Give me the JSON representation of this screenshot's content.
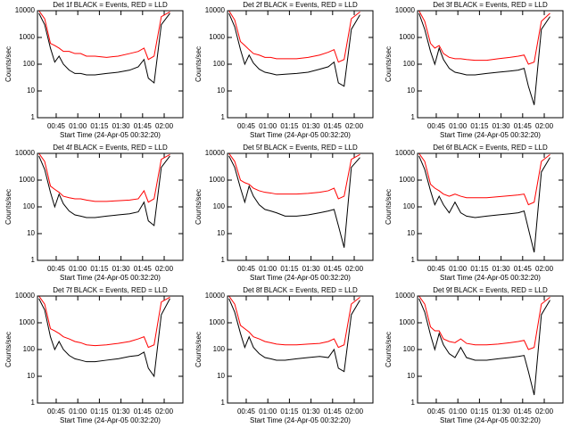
{
  "chart_data": [
    {
      "type": "line",
      "title": "Det 1f BLACK = Events, RED = LLD",
      "xlabel": "Start Time (24-Apr-05 00:32:20)",
      "ylabel": "Counts/sec",
      "log_scale": true,
      "x": [
        33,
        37,
        41,
        44,
        47,
        50,
        54,
        58,
        62,
        66,
        72,
        80,
        88,
        96,
        102,
        106,
        109,
        113,
        118,
        124
      ],
      "series": [
        {
          "name": "Events",
          "color": "#000000",
          "values": [
            8000,
            3000,
            400,
            120,
            200,
            100,
            60,
            45,
            45,
            40,
            40,
            45,
            50,
            60,
            80,
            150,
            30,
            20,
            3000,
            8000
          ]
        },
        {
          "name": "LLD",
          "color": "#ff0000",
          "values": [
            10000,
            5000,
            600,
            500,
            400,
            300,
            300,
            250,
            250,
            200,
            200,
            180,
            200,
            250,
            300,
            400,
            150,
            200,
            6000,
            9000
          ]
        }
      ],
      "xlim": [
        32,
        133
      ],
      "ylim": [
        1,
        10000
      ],
      "yticks": [
        1,
        10,
        100,
        1000,
        10000
      ],
      "xticks": [
        {
          "value": 45,
          "label": "00:45"
        },
        {
          "value": 60,
          "label": "01:00"
        },
        {
          "value": 75,
          "label": "01:15"
        },
        {
          "value": 90,
          "label": "01:30"
        },
        {
          "value": 105,
          "label": "01:45"
        },
        {
          "value": 120,
          "label": "02:00"
        }
      ]
    },
    {
      "type": "line",
      "title": "Det 2f BLACK = Events, RED = LLD",
      "xlabel": "Start Time (24-Apr-05 00:32:20)",
      "ylabel": "Counts/sec",
      "log_scale": true,
      "x": [
        33,
        37,
        41,
        44,
        47,
        50,
        54,
        58,
        62,
        66,
        72,
        80,
        88,
        96,
        102,
        106,
        109,
        113,
        118,
        124
      ],
      "series": [
        {
          "name": "Events",
          "color": "#000000",
          "values": [
            8000,
            2500,
            350,
            100,
            220,
            110,
            65,
            50,
            45,
            40,
            42,
            45,
            50,
            65,
            80,
            120,
            20,
            15,
            2000,
            7000
          ]
        },
        {
          "name": "LLD",
          "color": "#ff0000",
          "values": [
            10000,
            4500,
            700,
            500,
            350,
            250,
            220,
            180,
            180,
            160,
            160,
            160,
            180,
            220,
            280,
            350,
            120,
            150,
            5000,
            9000
          ]
        }
      ],
      "xlim": [
        32,
        133
      ],
      "ylim": [
        1,
        10000
      ],
      "yticks": [
        1,
        10,
        100,
        1000,
        10000
      ],
      "xticks": [
        {
          "value": 45,
          "label": "00:45"
        },
        {
          "value": 60,
          "label": "01:00"
        },
        {
          "value": 75,
          "label": "01:15"
        },
        {
          "value": 90,
          "label": "01:30"
        },
        {
          "value": 105,
          "label": "01:45"
        },
        {
          "value": 120,
          "label": "02:00"
        }
      ]
    },
    {
      "type": "line",
      "title": "Det 3f BLACK = Events, RED = LLD",
      "xlabel": "Start Time (24-Apr-05 00:32:20)",
      "ylabel": "Counts/sec",
      "log_scale": true,
      "x": [
        33,
        37,
        41,
        44,
        47,
        50,
        54,
        58,
        62,
        66,
        72,
        80,
        88,
        96,
        102,
        106,
        109,
        113,
        118,
        124
      ],
      "series": [
        {
          "name": "Events",
          "color": "#000000",
          "values": [
            8000,
            2000,
            300,
            100,
            400,
            150,
            70,
            50,
            45,
            40,
            40,
            45,
            50,
            55,
            60,
            70,
            15,
            3,
            2000,
            6000
          ]
        },
        {
          "name": "LLD",
          "color": "#ff0000",
          "values": [
            10000,
            4000,
            600,
            400,
            500,
            250,
            180,
            160,
            160,
            150,
            140,
            140,
            160,
            180,
            200,
            220,
            100,
            120,
            4000,
            8000
          ]
        }
      ],
      "xlim": [
        32,
        133
      ],
      "ylim": [
        1,
        10000
      ],
      "yticks": [
        1,
        10,
        100,
        1000,
        10000
      ],
      "xticks": [
        {
          "value": 45,
          "label": "00:45"
        },
        {
          "value": 60,
          "label": "01:00"
        },
        {
          "value": 75,
          "label": "01:15"
        },
        {
          "value": 90,
          "label": "01:30"
        },
        {
          "value": 105,
          "label": "01:45"
        },
        {
          "value": 120,
          "label": "02:00"
        }
      ]
    },
    {
      "type": "line",
      "title": "Det 4f BLACK = Events, RED = LLD",
      "xlabel": "Start Time (24-Apr-05 00:32:20)",
      "ylabel": "Counts/sec",
      "log_scale": true,
      "x": [
        33,
        37,
        41,
        44,
        47,
        50,
        54,
        58,
        62,
        66,
        72,
        80,
        88,
        96,
        102,
        106,
        109,
        113,
        118,
        124
      ],
      "series": [
        {
          "name": "Events",
          "color": "#000000",
          "values": [
            8000,
            2500,
            350,
            100,
            300,
            130,
            70,
            50,
            45,
            40,
            40,
            45,
            50,
            55,
            65,
            150,
            30,
            20,
            3000,
            8000
          ]
        },
        {
          "name": "LLD",
          "color": "#ff0000",
          "values": [
            10000,
            5000,
            600,
            450,
            350,
            250,
            220,
            200,
            200,
            180,
            160,
            160,
            170,
            180,
            200,
            400,
            150,
            200,
            6000,
            9000
          ]
        }
      ],
      "xlim": [
        32,
        133
      ],
      "ylim": [
        1,
        10000
      ],
      "yticks": [
        1,
        10,
        100,
        1000,
        10000
      ],
      "xticks": [
        {
          "value": 45,
          "label": "00:45"
        },
        {
          "value": 60,
          "label": "01:00"
        },
        {
          "value": 75,
          "label": "01:15"
        },
        {
          "value": 90,
          "label": "01:30"
        },
        {
          "value": 105,
          "label": "01:45"
        },
        {
          "value": 120,
          "label": "02:00"
        }
      ]
    },
    {
      "type": "line",
      "title": "Det 5f BLACK = Events, RED = LLD",
      "xlabel": "Start Time (24-Apr-05 00:32:20)",
      "ylabel": "Counts/sec",
      "log_scale": true,
      "x": [
        33,
        37,
        41,
        44,
        47,
        50,
        54,
        58,
        62,
        66,
        72,
        80,
        88,
        96,
        102,
        106,
        109,
        113,
        118,
        124
      ],
      "series": [
        {
          "name": "Events",
          "color": "#000000",
          "values": [
            8000,
            3000,
            500,
            150,
            600,
            250,
            120,
            80,
            70,
            60,
            45,
            45,
            50,
            60,
            70,
            80,
            20,
            3,
            3000,
            7000
          ]
        },
        {
          "name": "LLD",
          "color": "#ff0000",
          "values": [
            10000,
            5000,
            1000,
            800,
            700,
            500,
            400,
            350,
            330,
            300,
            300,
            300,
            320,
            350,
            400,
            500,
            200,
            250,
            6000,
            9000
          ]
        }
      ],
      "xlim": [
        32,
        133
      ],
      "ylim": [
        1,
        10000
      ],
      "yticks": [
        1,
        10,
        100,
        1000,
        10000
      ],
      "xticks": [
        {
          "value": 45,
          "label": "00:45"
        },
        {
          "value": 60,
          "label": "01:00"
        },
        {
          "value": 75,
          "label": "01:15"
        },
        {
          "value": 90,
          "label": "01:30"
        },
        {
          "value": 105,
          "label": "01:45"
        },
        {
          "value": 120,
          "label": "02:00"
        }
      ]
    },
    {
      "type": "line",
      "title": "Det 6f BLACK = Events, RED = LLD",
      "xlabel": "Start Time (24-Apr-05 00:32:20)",
      "ylabel": "Counts/sec",
      "log_scale": true,
      "x": [
        33,
        37,
        41,
        44,
        47,
        50,
        54,
        58,
        62,
        66,
        72,
        80,
        88,
        96,
        102,
        106,
        109,
        113,
        118,
        124
      ],
      "series": [
        {
          "name": "Events",
          "color": "#000000",
          "values": [
            8000,
            2500,
            400,
            120,
            250,
            120,
            60,
            150,
            60,
            45,
            40,
            45,
            50,
            55,
            60,
            70,
            15,
            2,
            2000,
            7000
          ]
        },
        {
          "name": "LLD",
          "color": "#ff0000",
          "values": [
            10000,
            5000,
            700,
            500,
            400,
            300,
            250,
            300,
            250,
            220,
            220,
            220,
            240,
            260,
            280,
            300,
            120,
            150,
            5000,
            9000
          ]
        }
      ],
      "xlim": [
        32,
        133
      ],
      "ylim": [
        1,
        10000
      ],
      "yticks": [
        1,
        10,
        100,
        1000,
        10000
      ],
      "xticks": [
        {
          "value": 45,
          "label": "00:45"
        },
        {
          "value": 60,
          "label": "01:00"
        },
        {
          "value": 75,
          "label": "01:15"
        },
        {
          "value": 90,
          "label": "01:30"
        },
        {
          "value": 105,
          "label": "01:45"
        },
        {
          "value": 120,
          "label": "02:00"
        }
      ]
    },
    {
      "type": "line",
      "title": "Det 7f BLACK = Events, RED = LLD",
      "xlabel": "Start Time (24-Apr-05 00:32:20)",
      "ylabel": "Counts/sec",
      "log_scale": true,
      "x": [
        33,
        37,
        41,
        44,
        47,
        50,
        54,
        58,
        62,
        66,
        72,
        80,
        88,
        96,
        102,
        106,
        109,
        113,
        118,
        124
      ],
      "series": [
        {
          "name": "Events",
          "color": "#000000",
          "values": [
            8000,
            3000,
            300,
            100,
            200,
            100,
            60,
            45,
            40,
            35,
            35,
            40,
            45,
            55,
            60,
            80,
            20,
            10,
            2000,
            8000
          ]
        },
        {
          "name": "LLD",
          "color": "#ff0000",
          "values": [
            10000,
            5000,
            600,
            500,
            400,
            300,
            250,
            200,
            180,
            150,
            140,
            150,
            170,
            200,
            250,
            300,
            120,
            150,
            6000,
            9000
          ]
        }
      ],
      "xlim": [
        32,
        133
      ],
      "ylim": [
        1,
        10000
      ],
      "yticks": [
        1,
        10,
        100,
        1000,
        10000
      ],
      "xticks": [
        {
          "value": 45,
          "label": "00:45"
        },
        {
          "value": 60,
          "label": "01:00"
        },
        {
          "value": 75,
          "label": "01:15"
        },
        {
          "value": 90,
          "label": "01:30"
        },
        {
          "value": 105,
          "label": "01:45"
        },
        {
          "value": 120,
          "label": "02:00"
        }
      ]
    },
    {
      "type": "line",
      "title": "Det 8f BLACK = Events, RED = LLD",
      "xlabel": "Start Time (24-Apr-05 00:32:20)",
      "ylabel": "Counts/sec",
      "log_scale": true,
      "x": [
        33,
        37,
        41,
        44,
        47,
        50,
        54,
        58,
        62,
        66,
        72,
        80,
        88,
        96,
        102,
        106,
        109,
        113,
        118,
        124
      ],
      "series": [
        {
          "name": "Events",
          "color": "#000000",
          "values": [
            8000,
            2500,
            400,
            120,
            300,
            120,
            70,
            50,
            45,
            40,
            40,
            45,
            50,
            55,
            50,
            100,
            20,
            15,
            2000,
            7000
          ]
        },
        {
          "name": "LLD",
          "color": "#ff0000",
          "values": [
            10000,
            5000,
            800,
            600,
            450,
            300,
            250,
            200,
            180,
            160,
            150,
            150,
            160,
            170,
            200,
            250,
            120,
            150,
            5000,
            9000
          ]
        }
      ],
      "xlim": [
        32,
        133
      ],
      "ylim": [
        1,
        10000
      ],
      "yticks": [
        1,
        10,
        100,
        1000,
        10000
      ],
      "xticks": [
        {
          "value": 45,
          "label": "00:45"
        },
        {
          "value": 60,
          "label": "01:00"
        },
        {
          "value": 75,
          "label": "01:15"
        },
        {
          "value": 90,
          "label": "01:30"
        },
        {
          "value": 105,
          "label": "01:45"
        },
        {
          "value": 120,
          "label": "02:00"
        }
      ]
    },
    {
      "type": "line",
      "title": "Det 9f BLACK = Events, RED = LLD",
      "xlabel": "Start Time (24-Apr-05 00:32:20)",
      "ylabel": "Counts/sec",
      "log_scale": true,
      "x": [
        33,
        37,
        41,
        44,
        47,
        50,
        54,
        58,
        62,
        66,
        72,
        80,
        88,
        96,
        102,
        106,
        109,
        113,
        118,
        124
      ],
      "series": [
        {
          "name": "Events",
          "color": "#000000",
          "values": [
            8000,
            2500,
            350,
            100,
            400,
            150,
            70,
            50,
            120,
            50,
            40,
            40,
            45,
            50,
            55,
            60,
            15,
            2,
            2000,
            7000
          ]
        },
        {
          "name": "LLD",
          "color": "#ff0000",
          "values": [
            10000,
            5000,
            700,
            500,
            500,
            250,
            200,
            180,
            250,
            170,
            150,
            150,
            160,
            180,
            200,
            220,
            100,
            120,
            5000,
            9000
          ]
        }
      ],
      "xlim": [
        32,
        133
      ],
      "ylim": [
        1,
        10000
      ],
      "yticks": [
        1,
        10,
        100,
        1000,
        10000
      ],
      "xticks": [
        {
          "value": 45,
          "label": "00:45"
        },
        {
          "value": 60,
          "label": "01:00"
        },
        {
          "value": 75,
          "label": "01:15"
        },
        {
          "value": 90,
          "label": "01:30"
        },
        {
          "value": 105,
          "label": "01:45"
        },
        {
          "value": 120,
          "label": "02:00"
        }
      ]
    }
  ]
}
